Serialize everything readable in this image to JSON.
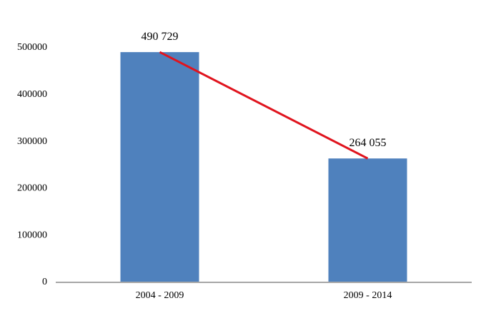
{
  "chart_data": {
    "type": "bar",
    "categories": [
      "2004 - 2009",
      "2009 - 2014"
    ],
    "values": [
      490729,
      264055
    ],
    "value_labels": [
      "490 729",
      "264 055"
    ],
    "color": "#4f81bd",
    "line_color": "#e0141e",
    "ylim": [
      0,
      500000
    ],
    "yticks": [
      0,
      100000,
      200000,
      300000,
      400000,
      500000
    ],
    "grid": false
  }
}
